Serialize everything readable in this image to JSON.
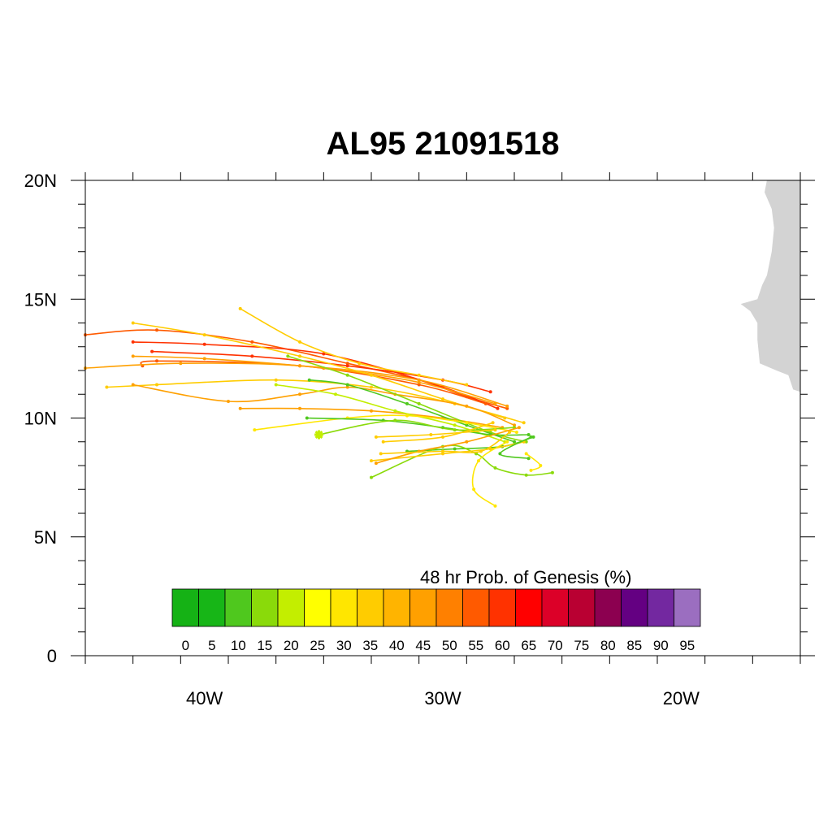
{
  "map": {
    "title": "AL95 21091518",
    "region": {
      "lon_min": -45,
      "lon_max": -15,
      "lat_min": 0,
      "lat_max": 20
    },
    "lat_ticks": [
      {
        "value": 0,
        "label": "0"
      },
      {
        "value": 5,
        "label": "5N"
      },
      {
        "value": 10,
        "label": "10N"
      },
      {
        "value": 15,
        "label": "15N"
      },
      {
        "value": 20,
        "label": "20N"
      }
    ],
    "lon_ticks": [
      {
        "value": -40,
        "label": "40W"
      },
      {
        "value": -30,
        "label": "30W"
      },
      {
        "value": -20,
        "label": "20W"
      }
    ],
    "land_color": "#d3d3d3",
    "land_polygon": [
      [
        -15.0,
        20.0
      ],
      [
        -16.4,
        20.0
      ],
      [
        -16.5,
        19.5
      ],
      [
        -16.2,
        18.8
      ],
      [
        -16.1,
        18.0
      ],
      [
        -16.2,
        17.0
      ],
      [
        -16.4,
        16.0
      ],
      [
        -16.6,
        15.6
      ],
      [
        -16.8,
        15.0
      ],
      [
        -17.5,
        14.8
      ],
      [
        -17.1,
        14.5
      ],
      [
        -16.8,
        14.0
      ],
      [
        -16.8,
        13.3
      ],
      [
        -16.7,
        12.3
      ],
      [
        -16.0,
        12.0
      ],
      [
        -15.5,
        11.8
      ],
      [
        -15.3,
        11.2
      ],
      [
        -15.0,
        11.1
      ]
    ],
    "colorbar": {
      "title": "48 hr Prob. of Genesis (%)",
      "levels": [
        "0",
        "5",
        "10",
        "15",
        "20",
        "25",
        "30",
        "35",
        "40",
        "45",
        "50",
        "55",
        "60",
        "65",
        "70",
        "75",
        "80",
        "85",
        "90",
        "95"
      ],
      "colors": [
        "#15b215",
        "#17b617",
        "#4fc81e",
        "#8ada0a",
        "#c3ee00",
        "#ffff00",
        "#ffe600",
        "#ffcc00",
        "#ffb400",
        "#ffa000",
        "#ff8000",
        "#ff5a00",
        "#ff3200",
        "#ff0000",
        "#dc0028",
        "#b90032",
        "#8c0050",
        "#640082",
        "#7328a0",
        "#9b6ec0"
      ]
    },
    "initial_position": {
      "lon": -35.2,
      "lat": 9.3,
      "color": "#c3ee00"
    },
    "tracks": [
      {
        "color": "#ff5a00",
        "points": [
          [
            -27.3,
            10.4
          ],
          [
            -29.0,
            10.9
          ],
          [
            -31.0,
            11.6
          ],
          [
            -34.0,
            12.3
          ],
          [
            -38.0,
            13.2
          ],
          [
            -42.0,
            13.7
          ],
          [
            -45.0,
            13.5
          ]
        ]
      },
      {
        "color": "#ff3200",
        "points": [
          [
            -28.0,
            11.1
          ],
          [
            -30.0,
            11.6
          ],
          [
            -34.0,
            12.2
          ],
          [
            -38.0,
            12.6
          ],
          [
            -42.2,
            12.8
          ]
        ]
      },
      {
        "color": "#ff3200",
        "points": [
          [
            -27.7,
            10.4
          ],
          [
            -30.0,
            11.3
          ],
          [
            -35.0,
            12.7
          ],
          [
            -40.0,
            13.1
          ],
          [
            -43.0,
            13.2
          ]
        ]
      },
      {
        "color": "#ff5a00",
        "points": [
          [
            -28.2,
            10.6
          ],
          [
            -31.0,
            11.4
          ],
          [
            -36.0,
            12.2
          ],
          [
            -42.0,
            12.4
          ],
          [
            -42.6,
            12.2
          ]
        ]
      },
      {
        "color": "#ffa000",
        "points": [
          [
            -27.8,
            10.6
          ],
          [
            -31.0,
            11.5
          ],
          [
            -35.0,
            12.1
          ],
          [
            -40.0,
            12.5
          ],
          [
            -43.0,
            12.6
          ]
        ]
      },
      {
        "color": "#ffa000",
        "points": [
          [
            -27.3,
            10.5
          ],
          [
            -31.0,
            11.6
          ],
          [
            -36.0,
            12.2
          ],
          [
            -41.0,
            12.3
          ],
          [
            -45.0,
            12.1
          ]
        ]
      },
      {
        "color": "#ffcc00",
        "points": [
          [
            -27.4,
            10.0
          ],
          [
            -30.0,
            10.8
          ],
          [
            -33.0,
            11.8
          ],
          [
            -36.0,
            12.6
          ],
          [
            -40.0,
            13.5
          ],
          [
            -43.0,
            14.0
          ]
        ]
      },
      {
        "color": "#ffcc00",
        "points": [
          [
            -29.0,
            11.4
          ],
          [
            -31.0,
            11.8
          ],
          [
            -33.5,
            12.3
          ],
          [
            -36.0,
            13.2
          ],
          [
            -38.5,
            14.6
          ]
        ]
      },
      {
        "color": "#ffcc00",
        "points": [
          [
            -26.6,
            9.8
          ],
          [
            -29.5,
            10.6
          ],
          [
            -33.0,
            11.3
          ],
          [
            -37.0,
            11.6
          ],
          [
            -42.0,
            11.4
          ],
          [
            -44.1,
            11.3
          ]
        ]
      },
      {
        "color": "#ffa000",
        "points": [
          [
            -27.0,
            9.7
          ],
          [
            -29.0,
            10.5
          ],
          [
            -32.0,
            11.0
          ],
          [
            -34.0,
            11.3
          ],
          [
            -36.0,
            11.0
          ],
          [
            -39.0,
            10.7
          ],
          [
            -43.0,
            11.4
          ]
        ]
      },
      {
        "color": "#ffa000",
        "points": [
          [
            -27.5,
            9.6
          ],
          [
            -30.0,
            10.0
          ],
          [
            -33.0,
            10.3
          ],
          [
            -36.0,
            10.4
          ],
          [
            -38.5,
            10.4
          ]
        ]
      },
      {
        "color": "#8ada0a",
        "points": [
          [
            -26.5,
            9.0
          ],
          [
            -28.0,
            9.4
          ],
          [
            -31.0,
            10.6
          ],
          [
            -34.0,
            11.8
          ],
          [
            -36.5,
            12.6
          ]
        ]
      },
      {
        "color": "#4fc81e",
        "points": [
          [
            -27.0,
            9.0
          ],
          [
            -29.0,
            9.7
          ],
          [
            -31.5,
            10.6
          ],
          [
            -34.0,
            11.4
          ],
          [
            -35.6,
            11.6
          ]
        ]
      },
      {
        "color": "#c3ee00",
        "points": [
          [
            -27.4,
            9.0
          ],
          [
            -29.5,
            9.7
          ],
          [
            -32.0,
            10.3
          ],
          [
            -34.5,
            11.0
          ],
          [
            -37.0,
            11.4
          ]
        ]
      },
      {
        "color": "#ffe600",
        "points": [
          [
            -26.9,
            9.4
          ],
          [
            -29.0,
            9.8
          ],
          [
            -31.5,
            10.1
          ],
          [
            -34.0,
            10.0
          ],
          [
            -37.9,
            9.5
          ]
        ]
      },
      {
        "color": "#4fc81e",
        "points": [
          [
            -26.4,
            9.3
          ],
          [
            -28.0,
            9.3
          ],
          [
            -30.0,
            9.6
          ],
          [
            -32.5,
            9.9
          ],
          [
            -35.7,
            10.0
          ]
        ]
      },
      {
        "color": "#8ada0a",
        "points": [
          [
            -27.0,
            9.6
          ],
          [
            -29.5,
            9.5
          ],
          [
            -32.0,
            9.9
          ],
          [
            -35.2,
            9.3
          ]
        ]
      },
      {
        "color": "#4fc81e",
        "points": [
          [
            -26.2,
            9.2
          ],
          [
            -27.5,
            8.8
          ],
          [
            -29.5,
            8.7
          ],
          [
            -31.5,
            8.6
          ]
        ]
      },
      {
        "color": "#8ada0a",
        "points": [
          [
            -25.4,
            7.7
          ],
          [
            -26.5,
            7.6
          ],
          [
            -27.8,
            7.9
          ],
          [
            -28.6,
            8.5
          ],
          [
            -30.0,
            8.8
          ],
          [
            -33.0,
            7.5
          ]
        ]
      },
      {
        "color": "#ffcc00",
        "points": [
          [
            -26.6,
            9.0
          ],
          [
            -28.0,
            8.7
          ],
          [
            -30.0,
            8.5
          ],
          [
            -33.0,
            8.2
          ]
        ]
      },
      {
        "color": "#ffa000",
        "points": [
          [
            -26.8,
            9.6
          ],
          [
            -29.0,
            9.0
          ],
          [
            -31.0,
            8.6
          ],
          [
            -32.8,
            8.1
          ]
        ]
      },
      {
        "color": "#ffcc00",
        "points": [
          [
            -27.9,
            9.8
          ],
          [
            -30.0,
            9.2
          ],
          [
            -32.5,
            9.0
          ]
        ]
      },
      {
        "color": "#ffe600",
        "points": [
          [
            -27.3,
            9.0
          ],
          [
            -28.5,
            8.2
          ],
          [
            -28.7,
            7.0
          ],
          [
            -27.8,
            6.3
          ]
        ]
      },
      {
        "color": "#ffe600",
        "points": [
          [
            -26.5,
            8.5
          ],
          [
            -25.9,
            8.0
          ],
          [
            -26.3,
            7.8
          ]
        ]
      },
      {
        "color": "#ffcc00",
        "points": [
          [
            -27.2,
            9.4
          ],
          [
            -28.4,
            8.6
          ],
          [
            -30.0,
            8.6
          ],
          [
            -32.6,
            8.5
          ]
        ]
      },
      {
        "color": "#4fc81e",
        "points": [
          [
            -26.3,
            9.2
          ],
          [
            -27.6,
            8.5
          ],
          [
            -26.4,
            8.3
          ]
        ]
      },
      {
        "color": "#ffcc00",
        "points": [
          [
            -27.8,
            9.5
          ],
          [
            -30.5,
            9.3
          ],
          [
            -32.8,
            9.2
          ]
        ]
      }
    ]
  }
}
